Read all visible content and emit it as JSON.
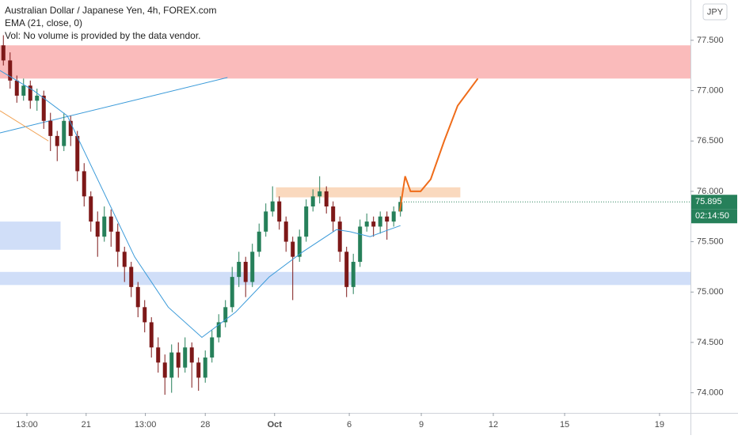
{
  "chart_data": {
    "type": "candlestick",
    "header": [
      "Australian Dollar / Japanese Yen, 4h, FOREX.com",
      "EMA (21, close, 0)",
      "Vol: No volume is provided by the data vendor."
    ],
    "currency": "JPY",
    "last_price": {
      "value": 75.895,
      "label": "75.895"
    },
    "countdown": "02:14:50",
    "up_color": "#26805a",
    "down_color": "#7d1818",
    "xlim": [
      0,
      102.6
    ],
    "ylim": [
      73.8,
      77.9
    ],
    "xticks": [
      {
        "value": 4,
        "label": "13:00"
      },
      {
        "value": 12.8,
        "label": "21"
      },
      {
        "value": 21.6,
        "label": "13:00"
      },
      {
        "value": 30.5,
        "label": "28"
      },
      {
        "value": 40.8,
        "label": "Oct"
      },
      {
        "value": 51.9,
        "label": "6"
      },
      {
        "value": 62.6,
        "label": "9"
      },
      {
        "value": 73.3,
        "label": "12"
      },
      {
        "value": 83.9,
        "label": "15"
      },
      {
        "value": 98,
        "label": "19"
      }
    ],
    "yticks": [
      {
        "value": 74,
        "label": "74.000"
      },
      {
        "value": 74.5,
        "label": "74.500"
      },
      {
        "value": 75,
        "label": "75.000"
      },
      {
        "value": 75.5,
        "label": "75.500"
      },
      {
        "value": 76,
        "label": "76.000"
      },
      {
        "value": 76.5,
        "label": "76.500"
      },
      {
        "value": 77,
        "label": "77.000"
      },
      {
        "value": 77.5,
        "label": "77.500"
      }
    ],
    "ohlc": [
      [
        77.45,
        77.55,
        77.25,
        77.3
      ],
      [
        77.3,
        77.38,
        77.02,
        77.1
      ],
      [
        77.1,
        77.15,
        76.88,
        76.95
      ],
      [
        76.95,
        77.12,
        76.9,
        77.05
      ],
      [
        77.05,
        77.1,
        76.82,
        76.9
      ],
      [
        76.9,
        77.02,
        76.8,
        76.95
      ],
      [
        76.95,
        77,
        76.62,
        76.7
      ],
      [
        76.7,
        76.78,
        76.4,
        76.55
      ],
      [
        76.55,
        76.6,
        76.3,
        76.45
      ],
      [
        76.45,
        76.78,
        76.4,
        76.7
      ],
      [
        76.7,
        76.75,
        76.45,
        76.55
      ],
      [
        76.55,
        76.6,
        76.1,
        76.2
      ],
      [
        76.2,
        76.28,
        75.85,
        75.95
      ],
      [
        75.95,
        76,
        75.6,
        75.7
      ],
      [
        75.7,
        75.8,
        75.35,
        75.55
      ],
      [
        75.55,
        75.85,
        75.5,
        75.75
      ],
      [
        75.75,
        75.82,
        75.45,
        75.6
      ],
      [
        75.6,
        75.68,
        75.25,
        75.4
      ],
      [
        75.4,
        75.45,
        75.1,
        75.25
      ],
      [
        75.25,
        75.3,
        74.95,
        75.05
      ],
      [
        75.05,
        75.1,
        74.75,
        74.85
      ],
      [
        74.85,
        74.92,
        74.6,
        74.7
      ],
      [
        74.7,
        74.75,
        74.35,
        74.45
      ],
      [
        74.45,
        74.55,
        74.2,
        74.3
      ],
      [
        74.3,
        74.38,
        73.98,
        74.15
      ],
      [
        74.15,
        74.48,
        74,
        74.4
      ],
      [
        74.4,
        74.5,
        74.15,
        74.25
      ],
      [
        74.25,
        74.55,
        74.2,
        74.45
      ],
      [
        74.45,
        74.5,
        74.05,
        74.3
      ],
      [
        74.3,
        74.35,
        74.02,
        74.15
      ],
      [
        74.15,
        74.42,
        74.1,
        74.35
      ],
      [
        74.35,
        74.62,
        74.3,
        74.55
      ],
      [
        74.55,
        74.78,
        74.5,
        74.7
      ],
      [
        74.7,
        74.92,
        74.65,
        74.85
      ],
      [
        74.85,
        75.25,
        74.8,
        75.15
      ],
      [
        75.15,
        75.4,
        75.05,
        75.3
      ],
      [
        75.3,
        75.35,
        74.95,
        75.1
      ],
      [
        75.1,
        75.48,
        75.05,
        75.4
      ],
      [
        75.4,
        75.68,
        75.35,
        75.6
      ],
      [
        75.6,
        75.88,
        75.55,
        75.8
      ],
      [
        75.8,
        76.05,
        75.75,
        75.9
      ],
      [
        75.9,
        75.95,
        75.62,
        75.7
      ],
      [
        75.7,
        75.75,
        75.4,
        75.5
      ],
      [
        75.5,
        75.55,
        74.92,
        75.35
      ],
      [
        75.35,
        75.62,
        75.3,
        75.55
      ],
      [
        75.55,
        75.92,
        75.5,
        75.85
      ],
      [
        75.85,
        76.02,
        75.8,
        75.95
      ],
      [
        75.95,
        76.15,
        75.88,
        76
      ],
      [
        76,
        76.05,
        75.78,
        75.85
      ],
      [
        75.85,
        75.9,
        75.6,
        75.7
      ],
      [
        75.7,
        75.75,
        75.3,
        75.4
      ],
      [
        75.4,
        75.45,
        74.95,
        75.05
      ],
      [
        75.05,
        75.38,
        74.98,
        75.3
      ],
      [
        75.3,
        75.72,
        75.25,
        75.65
      ],
      [
        75.65,
        75.78,
        75.6,
        75.7
      ],
      [
        75.7,
        75.75,
        75.55,
        75.65
      ],
      [
        75.65,
        75.8,
        75.58,
        75.75
      ],
      [
        75.75,
        75.8,
        75.52,
        75.7
      ],
      [
        75.7,
        75.85,
        75.65,
        75.8
      ],
      [
        75.8,
        75.95,
        75.75,
        75.895
      ]
    ],
    "ema": {
      "color": "#3a9ad9",
      "x": [
        0,
        5,
        10,
        15,
        20,
        25,
        30,
        35,
        40,
        45,
        50,
        52,
        55,
        57,
        59.5
      ],
      "values": [
        77.2,
        77,
        76.75,
        76.05,
        75.35,
        74.85,
        74.55,
        74.8,
        75.15,
        75.4,
        75.62,
        75.6,
        75.55,
        75.6,
        75.66
      ]
    },
    "projection": {
      "color": "#ef6c1a",
      "x": [
        59.4,
        60.2,
        61,
        62.5,
        64,
        66,
        68,
        71
      ],
      "values": [
        75.8,
        76.15,
        76,
        76,
        76.12,
        76.5,
        76.85,
        77.12
      ]
    },
    "trendlines": [
      {
        "color": "#3a9ad9",
        "x": [
          0,
          33.8
        ],
        "values": [
          76.58,
          77.13
        ]
      },
      {
        "color": "#f0a050",
        "x": [
          0,
          7.2
        ],
        "values": [
          76.8,
          76.5
        ]
      }
    ],
    "zones": [
      {
        "color": "rgba(245,120,120,0.5)",
        "x": [
          0,
          102.6
        ],
        "y": [
          77.12,
          77.45
        ]
      },
      {
        "color": "rgba(245,170,110,0.45)",
        "x": [
          41,
          68.4
        ],
        "y": [
          75.94,
          76.04
        ]
      },
      {
        "color": "rgba(120,160,235,0.35)",
        "x": [
          0,
          9
        ],
        "y": [
          75.42,
          75.7
        ]
      },
      {
        "color": "rgba(120,160,235,0.35)",
        "x": [
          0,
          102.6
        ],
        "y": [
          75.07,
          75.2
        ]
      }
    ]
  }
}
